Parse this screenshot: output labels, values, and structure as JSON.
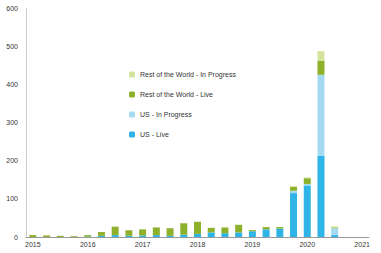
{
  "chart_data": {
    "type": "bar",
    "stacked": true,
    "grid": false,
    "legend": "upper left",
    "categories": [
      "2015",
      null,
      null,
      null,
      "2016",
      null,
      null,
      null,
      "2017",
      null,
      null,
      null,
      "2018",
      null,
      null,
      null,
      "2019",
      null,
      null,
      null,
      "2020",
      null,
      null,
      null,
      "2021"
    ],
    "ylim": [
      0,
      600
    ],
    "yticks": [
      0,
      100,
      200,
      300,
      400,
      500,
      600
    ],
    "series": [
      {
        "name": "US - Live",
        "color": "#2eb4e6",
        "values": [
          0,
          0,
          0,
          0,
          1,
          3,
          5,
          3,
          4,
          5,
          3,
          6,
          8,
          12,
          10,
          12,
          15,
          20,
          22,
          115,
          135,
          213,
          5,
          null,
          null
        ]
      },
      {
        "name": "US - In Progress",
        "color": "#a3daf2",
        "values": [
          0,
          0,
          0,
          0,
          0,
          0,
          0,
          0,
          0,
          0,
          0,
          0,
          0,
          0,
          0,
          0,
          0,
          0,
          0,
          6,
          4,
          212,
          18,
          null,
          null
        ]
      },
      {
        "name": "Rest of the World - Live",
        "color": "#8db12a",
        "values": [
          5,
          4,
          3,
          2,
          4,
          10,
          22,
          15,
          16,
          20,
          20,
          30,
          32,
          12,
          15,
          20,
          3,
          6,
          4,
          10,
          15,
          37,
          2,
          null,
          null
        ]
      },
      {
        "name": "Rest of the World - In Progress",
        "color": "#d4e39b",
        "values": [
          0,
          0,
          0,
          0,
          0,
          0,
          0,
          0,
          0,
          0,
          0,
          0,
          0,
          0,
          0,
          0,
          0,
          0,
          0,
          2,
          2,
          25,
          3,
          null,
          null
        ]
      }
    ]
  }
}
